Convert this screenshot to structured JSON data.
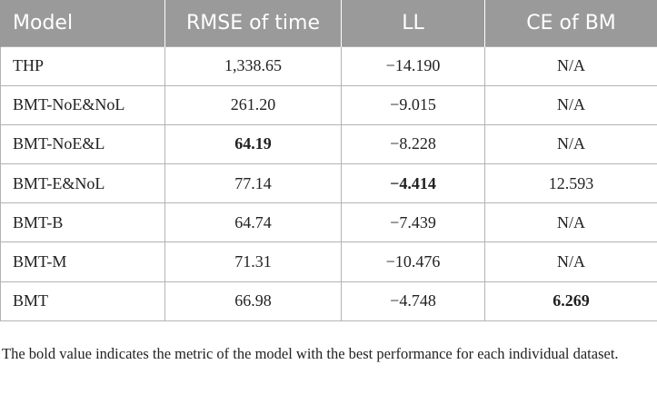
{
  "table": {
    "headers": [
      "Model",
      "RMSE of time",
      "LL",
      "CE of BM"
    ],
    "rows": [
      {
        "model": "THP",
        "rmse": "1,338.65",
        "ll": "−14.190",
        "ce": "N/A",
        "bold": []
      },
      {
        "model": "BMT-NoE&NoL",
        "rmse": "261.20",
        "ll": "−9.015",
        "ce": "N/A",
        "bold": []
      },
      {
        "model": "BMT-NoE&L",
        "rmse": "64.19",
        "ll": "−8.228",
        "ce": "N/A",
        "bold": [
          "rmse"
        ]
      },
      {
        "model": "BMT-E&NoL",
        "rmse": "77.14",
        "ll": "−4.414",
        "ce": "12.593",
        "bold": [
          "ll"
        ]
      },
      {
        "model": "BMT-B",
        "rmse": "64.74",
        "ll": "−7.439",
        "ce": "N/A",
        "bold": []
      },
      {
        "model": "BMT-M",
        "rmse": "71.31",
        "ll": "−10.476",
        "ce": "N/A",
        "bold": []
      },
      {
        "model": "BMT",
        "rmse": "66.98",
        "ll": "−4.748",
        "ce": "6.269",
        "bold": [
          "ce"
        ]
      }
    ]
  },
  "footnote": "The bold value indicates the metric of the model with the best performance for each individual dataset."
}
